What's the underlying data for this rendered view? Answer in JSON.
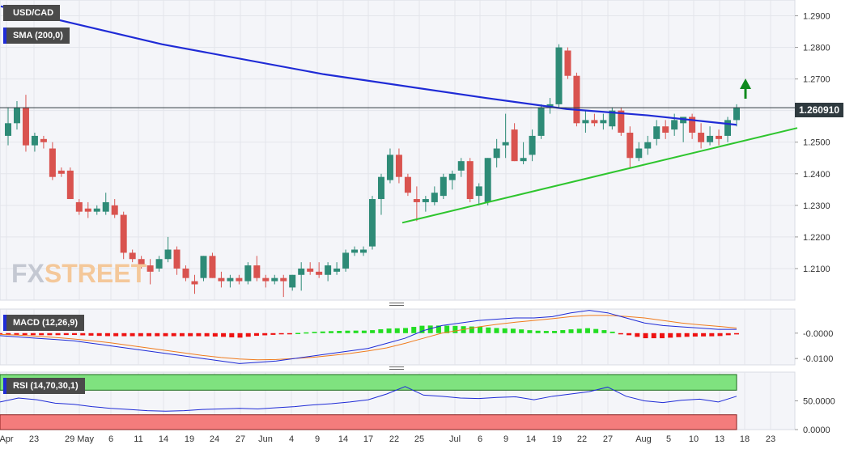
{
  "labels": {
    "symbol": "USD/CAD",
    "sma": "SMA (200,0)",
    "macd": "MACD (12,26,9)",
    "rsi": "RSI (14,70,30,1)",
    "current_price": "1.260910",
    "watermark_fx": "FX",
    "watermark_street": "STREET"
  },
  "colors": {
    "up": "#2e8b77",
    "down": "#d9534f",
    "sma": "#1f2bd6",
    "trendline": "#2ec52e",
    "arrow": "#0f8a1e",
    "macd_line": "#1f2bd6",
    "signal_line": "#f07c1e",
    "hist_pos": "#22dd22",
    "hist_neg": "#ee1111",
    "rsi_overbought": "#7fe27f",
    "rsi_oversold": "#f47c7c",
    "panel_bg": "#f4f5f9"
  },
  "chart_data": [
    {
      "type": "candlestick",
      "title": "USD/CAD",
      "ylim": [
        1.2,
        1.295
      ],
      "y_ticks": [
        "1.2100",
        "1.2200",
        "1.2300",
        "1.2400",
        "1.2500",
        "1.2600",
        "1.2700",
        "1.2800",
        "1.2900"
      ],
      "x_ticks": [
        "Apr",
        "23",
        "29 May",
        "6",
        "11",
        "14",
        "19",
        "24",
        "27",
        "Jun",
        "4",
        "9",
        "14",
        "17",
        "22",
        "25",
        "Jul",
        "6",
        "9",
        "14",
        "19",
        "22",
        "27",
        "Aug",
        "5",
        "10",
        "13",
        "18",
        "23"
      ],
      "current_price": 1.26091,
      "series": [
        {
          "name": "SMA (200,0)",
          "type": "line",
          "points": [
            [
              1,
              1.293
            ],
            [
              200,
              1.281
            ],
            [
              400,
              1.2715
            ],
            [
              600,
              1.264
            ],
            [
              700,
              1.2605
            ],
            [
              800,
              1.2585
            ],
            [
              910,
              1.2555
            ]
          ]
        },
        {
          "name": "trendline",
          "type": "line",
          "points": [
            [
              497,
              1.2245
            ],
            [
              985,
              1.2545
            ]
          ]
        }
      ],
      "candles": [
        [
          1.252,
          1.261,
          1.249,
          1.256
        ],
        [
          1.256,
          1.263,
          1.254,
          1.261
        ],
        [
          1.261,
          1.265,
          1.247,
          1.249
        ],
        [
          1.249,
          1.253,
          1.247,
          1.252
        ],
        [
          1.251,
          1.252,
          1.248,
          1.25
        ],
        [
          1.248,
          1.25,
          1.238,
          1.239
        ],
        [
          1.241,
          1.242,
          1.239,
          1.24
        ],
        [
          1.241,
          1.242,
          1.232,
          1.232
        ],
        [
          1.231,
          1.232,
          1.227,
          1.228
        ],
        [
          1.229,
          1.231,
          1.226,
          1.228
        ],
        [
          1.228,
          1.23,
          1.227,
          1.229
        ],
        [
          1.228,
          1.234,
          1.227,
          1.231
        ],
        [
          1.23,
          1.232,
          1.226,
          1.227
        ],
        [
          1.227,
          1.228,
          1.213,
          1.215
        ],
        [
          1.215,
          1.216,
          1.212,
          1.213
        ],
        [
          1.213,
          1.214,
          1.21,
          1.211
        ],
        [
          1.211,
          1.213,
          1.205,
          1.209
        ],
        [
          1.21,
          1.214,
          1.209,
          1.213
        ],
        [
          1.213,
          1.22,
          1.212,
          1.216
        ],
        [
          1.216,
          1.217,
          1.208,
          1.21
        ],
        [
          1.21,
          1.211,
          1.206,
          1.207
        ],
        [
          1.206,
          1.208,
          1.202,
          1.205
        ],
        [
          1.207,
          1.214,
          1.206,
          1.214
        ],
        [
          1.214,
          1.215,
          1.207,
          1.207
        ],
        [
          1.207,
          1.209,
          1.204,
          1.206
        ],
        [
          1.206,
          1.208,
          1.204,
          1.207
        ],
        [
          1.207,
          1.208,
          1.205,
          1.206
        ],
        [
          1.206,
          1.212,
          1.205,
          1.211
        ],
        [
          1.211,
          1.214,
          1.206,
          1.207
        ],
        [
          1.207,
          1.208,
          1.204,
          1.206
        ],
        [
          1.206,
          1.208,
          1.205,
          1.207
        ],
        [
          1.207,
          1.208,
          1.201,
          1.206
        ],
        [
          1.204,
          1.208,
          1.203,
          1.208
        ],
        [
          1.208,
          1.212,
          1.203,
          1.21
        ],
        [
          1.21,
          1.212,
          1.208,
          1.209
        ],
        [
          1.209,
          1.212,
          1.207,
          1.208
        ],
        [
          1.208,
          1.212,
          1.206,
          1.211
        ],
        [
          1.209,
          1.212,
          1.208,
          1.21
        ],
        [
          1.21,
          1.216,
          1.209,
          1.215
        ],
        [
          1.215,
          1.217,
          1.214,
          1.216
        ],
        [
          1.215,
          1.217,
          1.214,
          1.216
        ],
        [
          1.217,
          1.233,
          1.216,
          1.232
        ],
        [
          1.232,
          1.24,
          1.227,
          1.239
        ],
        [
          1.238,
          1.248,
          1.237,
          1.246
        ],
        [
          1.246,
          1.248,
          1.237,
          1.239
        ],
        [
          1.239,
          1.24,
          1.233,
          1.234
        ],
        [
          1.232,
          1.236,
          1.225,
          1.231
        ],
        [
          1.231,
          1.233,
          1.228,
          1.232
        ],
        [
          1.231,
          1.236,
          1.23,
          1.234
        ],
        [
          1.233,
          1.24,
          1.232,
          1.239
        ],
        [
          1.238,
          1.241,
          1.235,
          1.24
        ],
        [
          1.241,
          1.245,
          1.239,
          1.244
        ],
        [
          1.244,
          1.245,
          1.231,
          1.232
        ],
        [
          1.233,
          1.237,
          1.23,
          1.236
        ],
        [
          1.231,
          1.245,
          1.23,
          1.245
        ],
        [
          1.245,
          1.251,
          1.242,
          1.248
        ],
        [
          1.249,
          1.259,
          1.245,
          1.25
        ],
        [
          1.254,
          1.256,
          1.244,
          1.244
        ],
        [
          1.244,
          1.25,
          1.243,
          1.245
        ],
        [
          1.246,
          1.254,
          1.244,
          1.252
        ],
        [
          1.252,
          1.262,
          1.251,
          1.261
        ],
        [
          1.261,
          1.264,
          1.259,
          1.262
        ],
        [
          1.262,
          1.281,
          1.261,
          1.28
        ],
        [
          1.279,
          1.28,
          1.27,
          1.271
        ],
        [
          1.271,
          1.272,
          1.255,
          1.256
        ],
        [
          1.256,
          1.26,
          1.253,
          1.257
        ],
        [
          1.257,
          1.259,
          1.255,
          1.256
        ],
        [
          1.256,
          1.259,
          1.254,
          1.257
        ],
        [
          1.255,
          1.261,
          1.254,
          1.26
        ],
        [
          1.26,
          1.261,
          1.252,
          1.253
        ],
        [
          1.253,
          1.255,
          1.242,
          1.245
        ],
        [
          1.245,
          1.25,
          1.244,
          1.248
        ],
        [
          1.248,
          1.252,
          1.246,
          1.25
        ],
        [
          1.251,
          1.257,
          1.249,
          1.255
        ],
        [
          1.255,
          1.257,
          1.251,
          1.253
        ],
        [
          1.254,
          1.259,
          1.252,
          1.257
        ],
        [
          1.256,
          1.258,
          1.25,
          1.258
        ],
        [
          1.258,
          1.259,
          1.251,
          1.253
        ],
        [
          1.253,
          1.256,
          1.248,
          1.25
        ],
        [
          1.25,
          1.255,
          1.249,
          1.252
        ],
        [
          1.252,
          1.254,
          1.249,
          1.251
        ],
        [
          1.252,
          1.258,
          1.25,
          1.257
        ],
        [
          1.257,
          1.262,
          1.255,
          1.261
        ]
      ]
    },
    {
      "type": "line",
      "title": "MACD (12,26,9)",
      "ylim": [
        -0.0125,
        0.0095
      ],
      "y_ticks": [
        "-0.0000",
        "-0.0100"
      ],
      "series": [
        {
          "name": "MACD",
          "values": [
            -0.001,
            -0.0015,
            -0.002,
            -0.0025,
            -0.003,
            -0.004,
            -0.005,
            -0.006,
            -0.007,
            -0.008,
            -0.009,
            -0.01,
            -0.011,
            -0.012,
            -0.0115,
            -0.011,
            -0.01,
            -0.009,
            -0.008,
            -0.007,
            -0.006,
            -0.004,
            -0.002,
            0.001,
            0.003,
            0.004,
            0.005,
            0.0055,
            0.006,
            0.006,
            0.0065,
            0.008,
            0.009,
            0.008,
            0.006,
            0.004,
            0.003,
            0.0025,
            0.002,
            0.0015,
            0.0015
          ]
        },
        {
          "name": "Signal",
          "values": [
            -0.0005,
            -0.0008,
            -0.0012,
            -0.0017,
            -0.0023,
            -0.003,
            -0.0038,
            -0.0048,
            -0.0058,
            -0.0068,
            -0.0078,
            -0.0088,
            -0.0096,
            -0.0102,
            -0.0105,
            -0.0104,
            -0.01,
            -0.0095,
            -0.0088,
            -0.008,
            -0.007,
            -0.0058,
            -0.004,
            -0.002,
            0.0,
            0.0012,
            0.0025,
            0.0035,
            0.0043,
            0.005,
            0.0057,
            0.0065,
            0.007,
            0.007,
            0.0066,
            0.006,
            0.005,
            0.004,
            0.0033,
            0.0027,
            0.002
          ]
        }
      ]
    },
    {
      "type": "line",
      "title": "RSI (14,70,30,1)",
      "ylim": [
        0,
        100
      ],
      "y_ticks": [
        "50.0000",
        "0.0000"
      ],
      "bands": {
        "overbought": 70,
        "oversold": 30
      },
      "series": [
        {
          "name": "RSI",
          "values": [
            48,
            55,
            52,
            46,
            44,
            40,
            37,
            35,
            33,
            32,
            33,
            35,
            36,
            37,
            36,
            38,
            40,
            43,
            45,
            48,
            52,
            62,
            75,
            60,
            58,
            55,
            54,
            56,
            57,
            52,
            58,
            62,
            66,
            74,
            58,
            50,
            47,
            51,
            53,
            48,
            58
          ]
        }
      ]
    }
  ]
}
